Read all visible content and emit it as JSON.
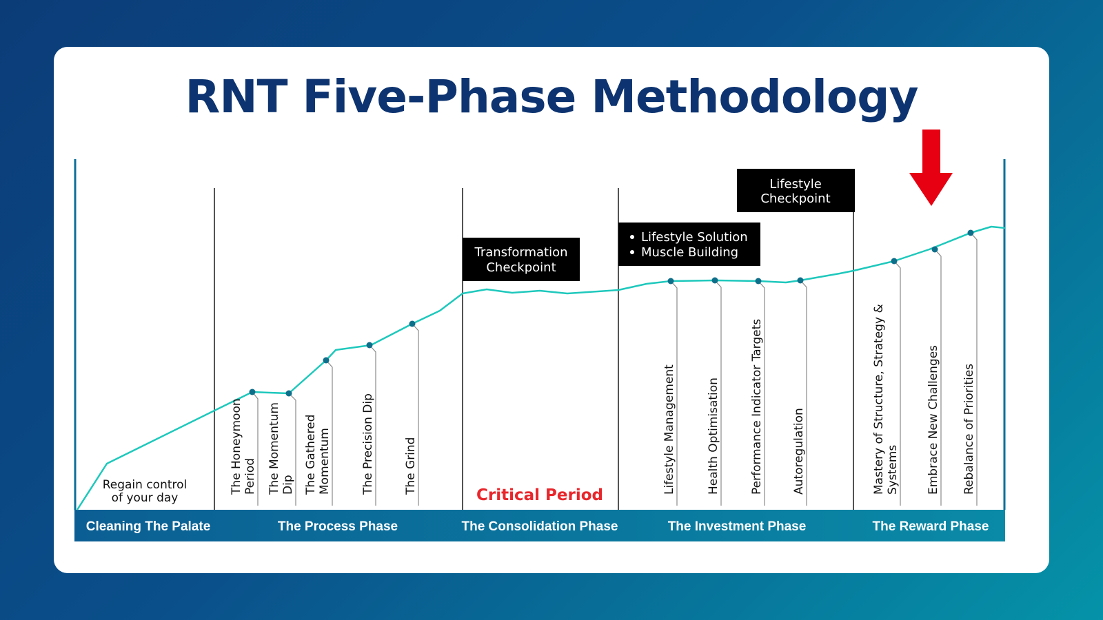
{
  "title": "RNT Five-Phase Methodology",
  "colors": {
    "curve": "#1ec8bc",
    "marker": "#0e6f8a",
    "bar": "#0b6f98",
    "title": "#0d3470",
    "critical": "#e8262b",
    "arrow": "#e60012"
  },
  "phases": [
    {
      "label": "Cleaning The Palate"
    },
    {
      "label": "The Process Phase"
    },
    {
      "label": "The Consolidation Phase"
    },
    {
      "label": "The Investment Phase"
    },
    {
      "label": "The Reward Phase"
    }
  ],
  "notes": {
    "regain": [
      "Regain control",
      "of your day"
    ],
    "critical_period": "Critical Period"
  },
  "stages": [
    {
      "lines": [
        "The Honeymoon",
        "Period"
      ]
    },
    {
      "lines": [
        "The Momentum",
        "Dip"
      ]
    },
    {
      "lines": [
        "The Gathered",
        "Momentum"
      ]
    },
    {
      "lines": [
        "The Precision Dip"
      ]
    },
    {
      "lines": [
        "The Grind"
      ]
    },
    {
      "lines": [
        "Lifestyle Management"
      ]
    },
    {
      "lines": [
        "Health Optimisation"
      ]
    },
    {
      "lines": [
        "Performance Indicator Targets"
      ]
    },
    {
      "lines": [
        "Autoregulation"
      ]
    },
    {
      "lines": [
        "Mastery of Structure, Strategy &",
        "Systems"
      ]
    },
    {
      "lines": [
        "Embrace New Challenges"
      ]
    },
    {
      "lines": [
        "Rebalance of Priorities"
      ]
    }
  ],
  "boxes": {
    "transformation": [
      "Transformation",
      "Checkpoint"
    ],
    "lifestyle_list": [
      "Lifestyle Solution",
      "Muscle Building"
    ],
    "lifestyle_checkpoint": [
      "Lifestyle",
      "Checkpoint"
    ]
  }
}
